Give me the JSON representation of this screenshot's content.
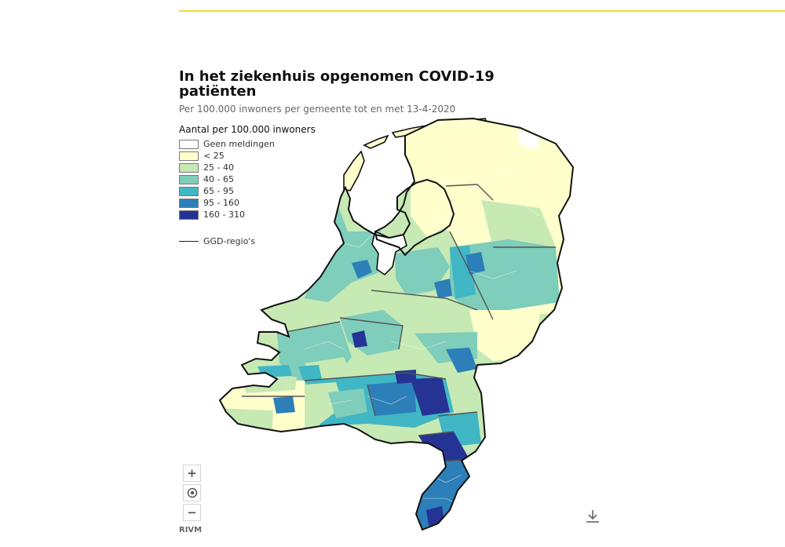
{
  "page": {
    "title": "In het ziekenhuis opgenomen COVID-19 patiënten",
    "subtitle": "Per 100.000 inwoners per gemeente tot en met 13-4-2020"
  },
  "legend": {
    "title": "Aantal per 100.000 inwoners",
    "classes": [
      {
        "label": "Geen meldingen",
        "color": "#ffffff"
      },
      {
        "label": "< 25",
        "color": "#ffffcc"
      },
      {
        "label": "25 - 40",
        "color": "#c7e9b4"
      },
      {
        "label": "40 - 65",
        "color": "#7fcdbb"
      },
      {
        "label": "65 - 95",
        "color": "#41b6c4"
      },
      {
        "label": "95 - 160",
        "color": "#2c7fb8"
      },
      {
        "label": "160 - 310",
        "color": "#253494"
      }
    ],
    "boundary_label": "GGD-regio's"
  },
  "controls": {
    "zoom_in": "+",
    "zoom_out": "−",
    "recenter_icon": "target-icon",
    "download_icon": "download-icon"
  },
  "source": "RIVM",
  "colors": {
    "accent_rule": "#f0dc2e",
    "outline": "#111111",
    "boundary": "#555555"
  }
}
